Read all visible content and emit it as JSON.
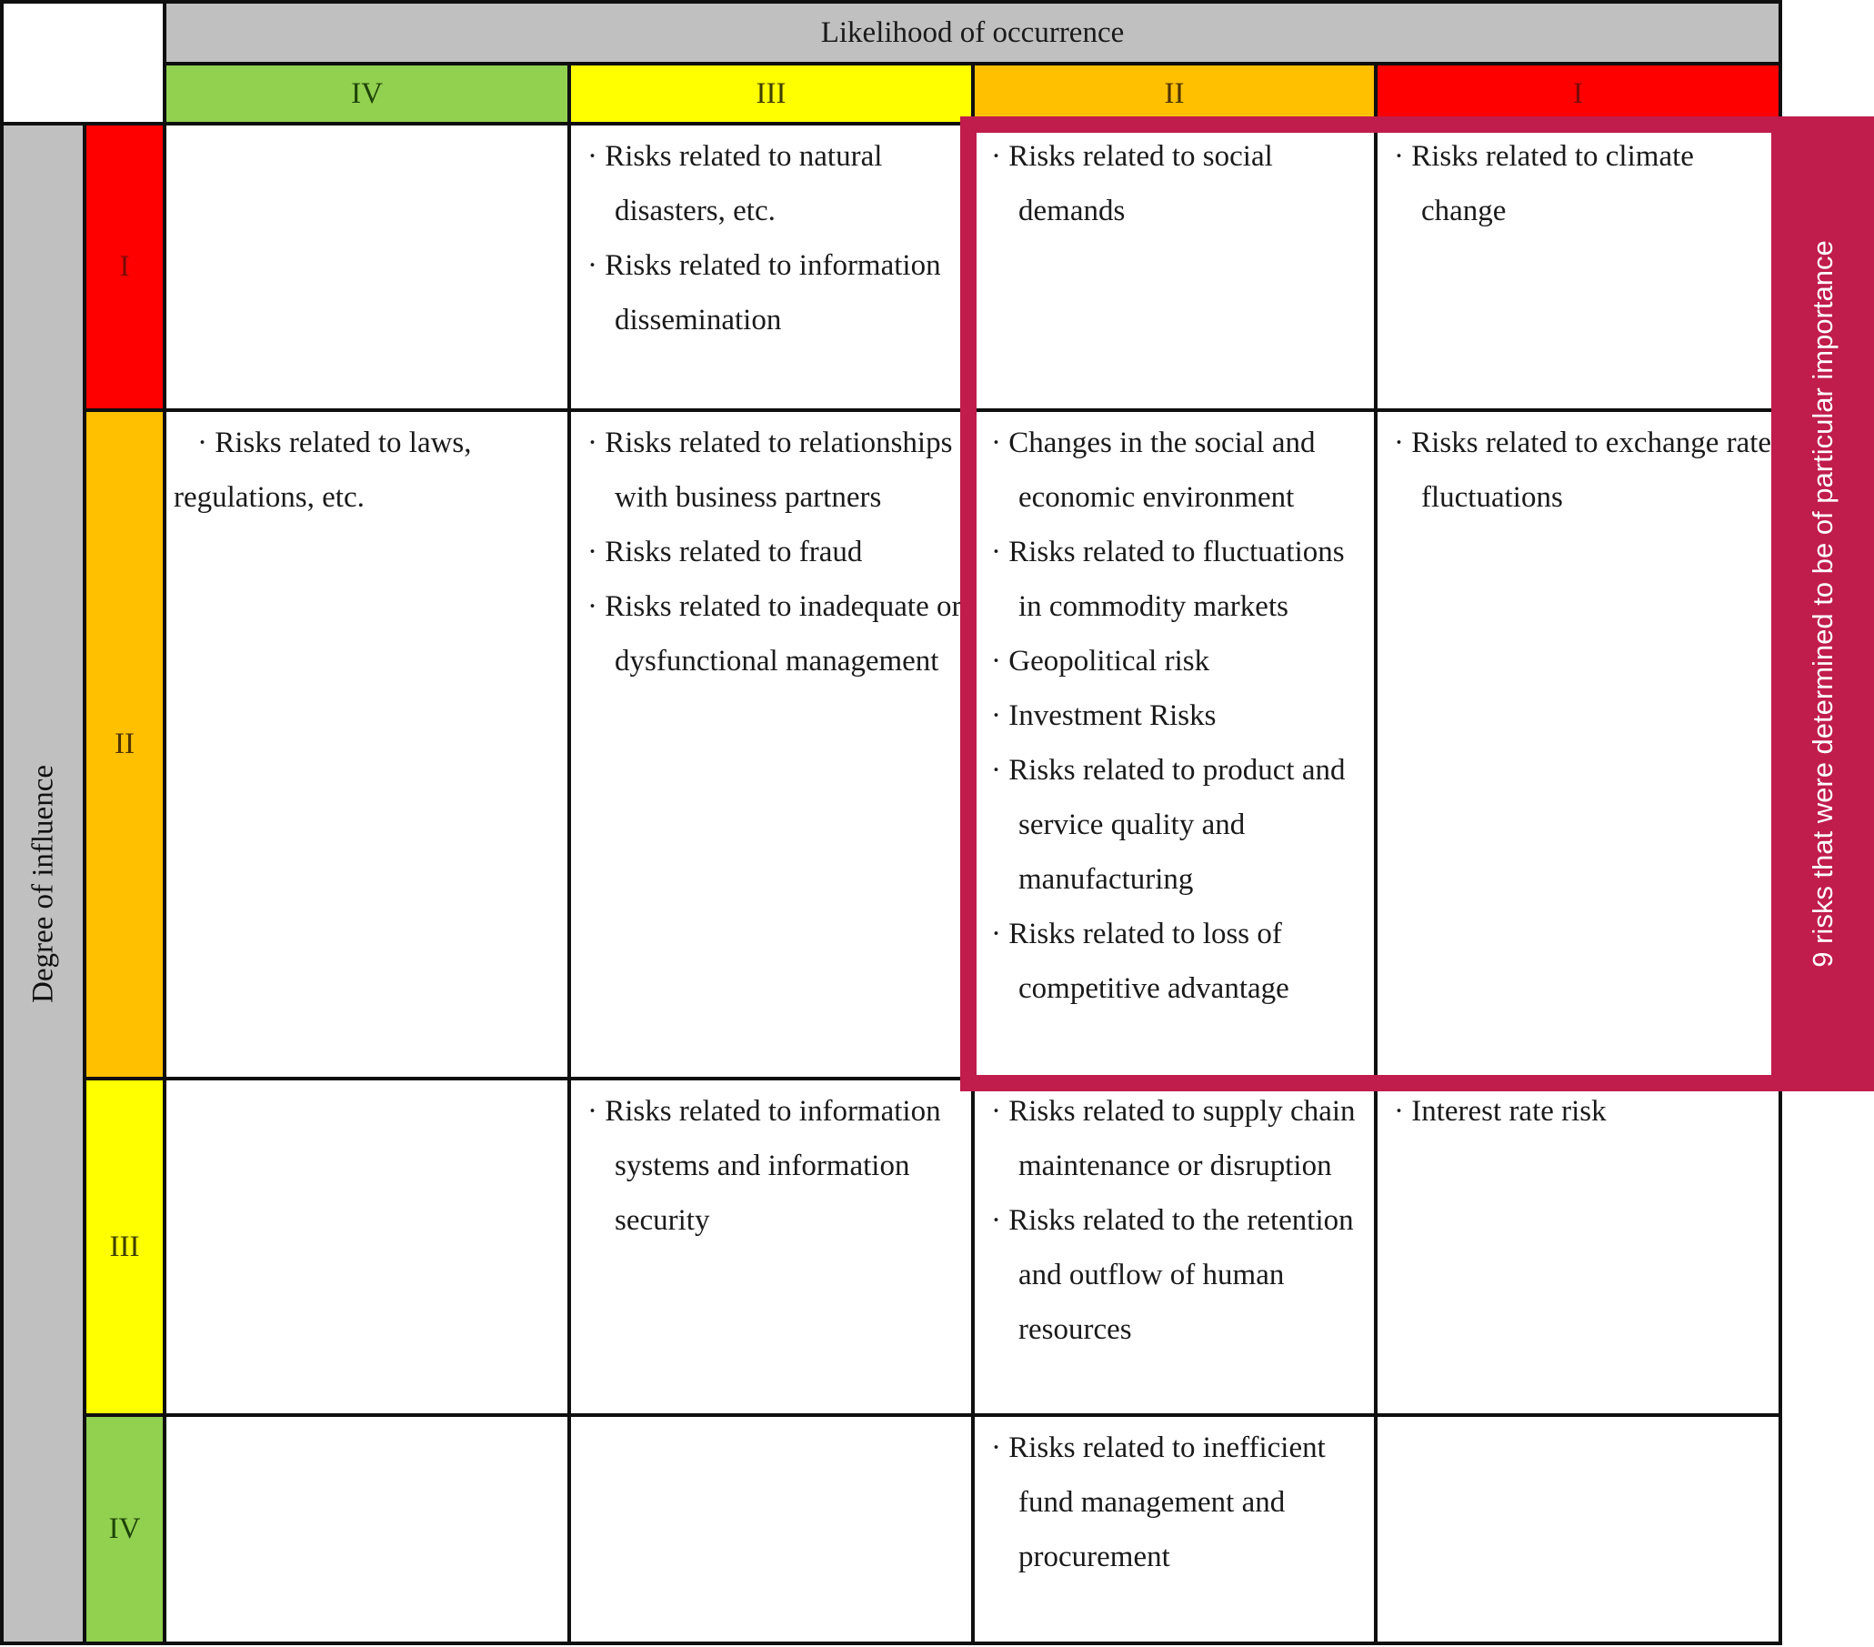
{
  "axes": {
    "likelihood_title": "Likelihood of occurrence",
    "influence_title": "Degree of influence",
    "likelihood_levels": [
      "IV",
      "III",
      "II",
      "I"
    ],
    "influence_levels": [
      "I",
      "II",
      "III",
      "IV"
    ]
  },
  "colors": {
    "level_1": "#fe0000",
    "level_2": "#ffc000",
    "level_3": "#ffff00",
    "level_4": "#92d050",
    "axis_header_gray": "#c0c0c0",
    "highlight_pink": "#c01c4c",
    "grid_line": "#0f0f0f"
  },
  "highlight": {
    "label": "9 risks that were determined to be of particular importance"
  },
  "cells": {
    "inf_I": {
      "lik_IV": [],
      "lik_III": [
        "Risks related to natural disasters, etc.",
        "Risks related to information dissemination"
      ],
      "lik_II": [
        "Risks related to social demands"
      ],
      "lik_I": [
        "Risks related to climate change"
      ]
    },
    "inf_II": {
      "lik_IV": [
        {
          "text": "Risks related to laws, regulations, etc.",
          "hang": false
        }
      ],
      "lik_III": [
        "Risks related to relationships with business partners",
        "Risks related to fraud",
        "Risks related to inadequate or dysfunctional management"
      ],
      "lik_II": [
        "Changes in the social and economic environment",
        "Risks related to fluctuations in commodity markets",
        "Geopolitical risk",
        "Investment Risks",
        "Risks related to product and service quality and manufacturing",
        "Risks related to loss of competitive advantage"
      ],
      "lik_I": [
        "Risks related to exchange rate fluctuations"
      ]
    },
    "inf_III": {
      "lik_IV": [],
      "lik_III": [
        "Risks related to information systems and information security"
      ],
      "lik_II": [
        "Risks related to supply chain maintenance or disruption",
        "Risks related to the retention and outflow of human resources"
      ],
      "lik_I": [
        "Interest rate risk"
      ]
    },
    "inf_IV": {
      "lik_IV": [],
      "lik_III": [],
      "lik_II": [
        "Risks related to inefficient fund management and procurement"
      ],
      "lik_I": []
    }
  }
}
